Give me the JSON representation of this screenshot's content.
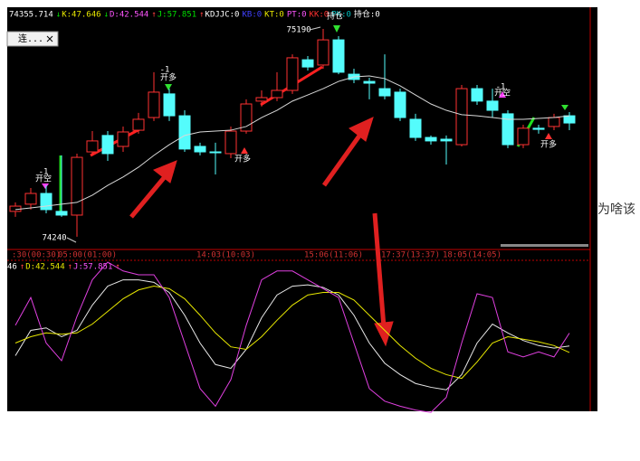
{
  "page_text": "为啥该",
  "chart_data": [
    {
      "type": "candlestick",
      "tab_label": "连...",
      "header": [
        {
          "text": "74355.714",
          "color": "#ffffff"
        },
        {
          "text": "↓",
          "color": "#00e000"
        },
        {
          "text": "K:47.646",
          "color": "#e8e800"
        },
        {
          "text": "↓",
          "color": "#00e000"
        },
        {
          "text": "D:42.544",
          "color": "#ff55ff"
        },
        {
          "text": "↑",
          "color": "#ff4040"
        },
        {
          "text": "J:57.851",
          "color": "#00e000"
        },
        {
          "text": "↑",
          "color": "#ff4040"
        },
        {
          "text": "KDJJC:0",
          "color": "#ffffff"
        },
        {
          "text": "KB:0",
          "color": "#4040ff"
        },
        {
          "text": "KT:0",
          "color": "#e8e800"
        },
        {
          "text": "PT:0",
          "color": "#ff55ff"
        },
        {
          "text": "KK:0",
          "color": "#ff3030"
        },
        {
          "text": "PK:0",
          "color": "#00c0c0"
        },
        {
          "text": "持仓:0",
          "color": "#ffffff"
        }
      ],
      "categories": [
        ":30(00:30)",
        null,
        null,
        "05:00(01:00)",
        null,
        null,
        null,
        null,
        null,
        null,
        null,
        null,
        "14:03(10:03)",
        null,
        null,
        null,
        null,
        null,
        null,
        "15:06(11:06)",
        null,
        null,
        null,
        null,
        "17:37(13:37)",
        null,
        null,
        null,
        "18:05(14:05)",
        null,
        null,
        null,
        null,
        null,
        null,
        null,
        null
      ],
      "open": [
        74356,
        74389,
        74438,
        74356,
        74339,
        74628,
        74703,
        74653,
        74727,
        74785,
        74893,
        74793,
        74653,
        74628,
        74620,
        74723,
        74860,
        74876,
        74909,
        75049,
        75025,
        75140,
        74983,
        74950,
        74917,
        74901,
        74777,
        74694,
        74686,
        74661,
        74917,
        74860,
        74802,
        74661,
        74736,
        74744,
        74793
      ],
      "high": [
        74397,
        74463,
        74475,
        74612,
        74620,
        74723,
        74723,
        74744,
        74806,
        74992,
        74917,
        74818,
        74670,
        74670,
        74744,
        74868,
        74909,
        74992,
        75074,
        75066,
        75190,
        75157,
        75008,
        74967,
        75074,
        74917,
        74802,
        74703,
        74703,
        74934,
        74934,
        74917,
        74818,
        74752,
        74752,
        74802,
        74810
      ],
      "low": [
        74331,
        74364,
        74347,
        74331,
        74240,
        74612,
        74587,
        74628,
        74711,
        74769,
        74769,
        74628,
        74612,
        74525,
        74599,
        74711,
        74835,
        74860,
        74893,
        75000,
        75008,
        74983,
        74942,
        74868,
        74868,
        74769,
        74678,
        74661,
        74570,
        74653,
        74843,
        74785,
        74645,
        74645,
        74711,
        74727,
        74727
      ],
      "close": [
        74380,
        74438,
        74364,
        74339,
        74603,
        74678,
        74620,
        74719,
        74777,
        74901,
        74793,
        74641,
        74628,
        74624,
        74723,
        74847,
        74876,
        74909,
        75058,
        75016,
        75140,
        74992,
        74959,
        74942,
        74884,
        74785,
        74694,
        74678,
        74678,
        74917,
        74860,
        74818,
        74661,
        74736,
        74731,
        74785,
        74760
      ],
      "up_color": "#ff3232",
      "down_color": "#54fcfc",
      "ma": {
        "color": "#d8d8d8",
        "values": [
          74364,
          74372,
          74380,
          74389,
          74397,
          74430,
          74475,
          74513,
          74558,
          74612,
          74661,
          74703,
          74719,
          74723,
          74727,
          74744,
          74785,
          74818,
          74860,
          74888,
          74917,
          74950,
          74971,
          74975,
          74963,
          74930,
          74888,
          74847,
          74818,
          74798,
          74793,
          74785,
          74777,
          74777,
          74781,
          74785,
          74793
        ]
      },
      "ylim": [
        74186,
        75223
      ],
      "annotations": [
        "-1",
        "开空",
        "-1",
        "开多",
        "开多",
        "持仓",
        "75190",
        "74240",
        "-1",
        "开空",
        "开多"
      ]
    },
    {
      "type": "line",
      "header": [
        {
          "text": "46",
          "color": "#ffffff"
        },
        {
          "text": "↑",
          "color": "#ff4040"
        },
        {
          "text": "D:42.544",
          "color": "#e8e800"
        },
        {
          "text": "↑",
          "color": "#ff4040"
        },
        {
          "text": "J:57.851",
          "color": "#ff55ff"
        },
        {
          "text": "↑",
          "color": "#ff4040"
        }
      ],
      "series": [
        {
          "color": "#e8e8e8",
          "values": [
            40,
            60,
            62,
            55,
            60,
            80,
            95,
            100,
            100,
            98,
            90,
            72,
            50,
            33,
            30,
            45,
            70,
            88,
            95,
            96,
            94,
            88,
            72,
            50,
            34,
            25,
            18,
            15,
            13,
            25,
            50,
            65,
            58,
            52,
            48,
            46,
            47.646
          ]
        },
        {
          "color": "#e8e800",
          "values": [
            50,
            55,
            58,
            57,
            58,
            65,
            75,
            85,
            92,
            95,
            93,
            85,
            72,
            58,
            47,
            45,
            55,
            68,
            80,
            88,
            90,
            90,
            84,
            72,
            60,
            48,
            38,
            30,
            25,
            22,
            35,
            50,
            55,
            53,
            51,
            48,
            42.544
          ]
        },
        {
          "color": "#e040e0",
          "values": [
            64,
            86,
            50,
            36,
            71,
            100,
            114,
            107,
            104,
            104,
            86,
            50,
            14,
            0,
            21,
            64,
            100,
            107,
            107,
            100,
            93,
            86,
            50,
            14,
            4,
            0,
            -3,
            -5,
            7,
            50,
            89,
            86,
            43,
            39,
            43,
            39,
            57.851
          ]
        }
      ],
      "ylim": [
        -4,
        114
      ]
    }
  ]
}
